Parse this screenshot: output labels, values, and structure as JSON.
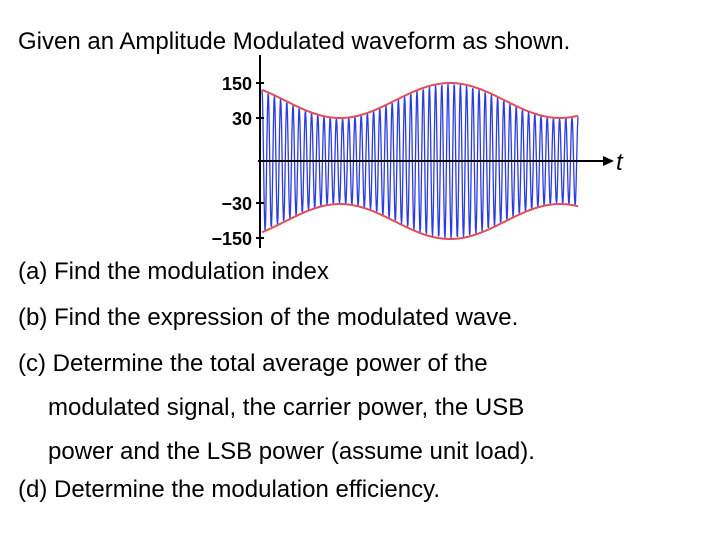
{
  "header": {
    "title": "Given an Amplitude Modulated waveform as shown."
  },
  "figure": {
    "y_tick_labels": [
      "150",
      "30",
      "−30",
      "−150"
    ],
    "x_label": "t"
  },
  "questions": [
    {
      "lines": [
        "(a) Find the modulation index"
      ]
    },
    {
      "lines": [
        "(b) Find the expression of the modulated wave."
      ]
    },
    {
      "lines": [
        "(c) Determine the total average power of the",
        "modulated signal, the carrier power, the USB",
        "power and the LSB power (assume unit load)."
      ]
    },
    {
      "lines": [
        "(d) Determine the modulation efficiency."
      ]
    }
  ]
}
